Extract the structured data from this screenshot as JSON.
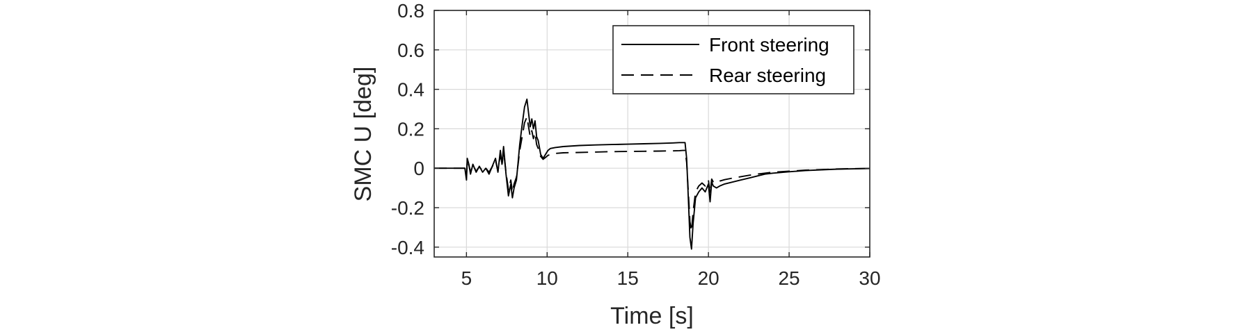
{
  "chart_data": {
    "type": "line",
    "xlabel": "Time [s]",
    "ylabel": "SMC U [deg]",
    "xlim": [
      3,
      30
    ],
    "ylim": [
      -0.45,
      0.8
    ],
    "xticks": [
      5,
      10,
      15,
      20,
      25,
      30
    ],
    "yticks": [
      -0.4,
      -0.2,
      0,
      0.2,
      0.4,
      0.6,
      0.8
    ],
    "xtick_labels": [
      "5",
      "10",
      "15",
      "20",
      "25",
      "30"
    ],
    "ytick_labels": [
      "-0.4",
      "-0.2",
      "0",
      "0.2",
      "0.4",
      "0.6",
      "0.8"
    ],
    "grid": true,
    "legend_position": "top-right",
    "series": [
      {
        "name": "Front steering",
        "style": "solid",
        "color": "#000000",
        "x": [
          3.0,
          4.9,
          5.0,
          5.05,
          5.15,
          5.25,
          5.4,
          5.6,
          5.8,
          6.0,
          6.2,
          6.4,
          6.6,
          6.8,
          6.95,
          7.1,
          7.2,
          7.3,
          7.45,
          7.6,
          7.75,
          7.85,
          7.95,
          8.1,
          8.2,
          8.3,
          8.45,
          8.6,
          8.75,
          8.85,
          8.95,
          9.05,
          9.15,
          9.25,
          9.35,
          9.45,
          9.6,
          9.75,
          9.9,
          10.05,
          10.2,
          10.5,
          11.0,
          12.0,
          13.0,
          14.0,
          15.0,
          16.0,
          17.0,
          17.8,
          18.2,
          18.4,
          18.55,
          18.65,
          18.75,
          18.85,
          18.95,
          19.05,
          19.2,
          19.4,
          19.6,
          19.8,
          20.0,
          20.1,
          20.2,
          20.3,
          20.5,
          20.7,
          21.0,
          21.5,
          22.0,
          22.5,
          23.0,
          23.5,
          24.0,
          25.0,
          26.0,
          27.0,
          28.0,
          29.0,
          30.0
        ],
        "values": [
          0.0,
          0.0,
          -0.06,
          0.05,
          0.02,
          -0.03,
          0.02,
          -0.02,
          0.01,
          -0.02,
          0.0,
          -0.03,
          0.01,
          0.05,
          -0.02,
          0.09,
          0.02,
          0.11,
          -0.03,
          -0.14,
          -0.08,
          -0.15,
          -0.1,
          -0.06,
          0.03,
          0.12,
          0.22,
          0.31,
          0.35,
          0.28,
          0.21,
          0.25,
          0.2,
          0.24,
          0.16,
          0.14,
          0.07,
          0.05,
          0.07,
          0.09,
          0.1,
          0.105,
          0.11,
          0.115,
          0.118,
          0.12,
          0.122,
          0.124,
          0.126,
          0.128,
          0.13,
          0.13,
          0.13,
          0.05,
          -0.15,
          -0.35,
          -0.41,
          -0.28,
          -0.15,
          -0.12,
          -0.1,
          -0.12,
          -0.08,
          -0.17,
          -0.07,
          -0.09,
          -0.1,
          -0.09,
          -0.08,
          -0.07,
          -0.06,
          -0.05,
          -0.04,
          -0.03,
          -0.025,
          -0.018,
          -0.012,
          -0.008,
          -0.005,
          -0.003,
          -0.001
        ]
      },
      {
        "name": "Rear steering",
        "style": "dashed",
        "color": "#000000",
        "x": [
          3.0,
          4.9,
          5.0,
          5.05,
          5.15,
          5.25,
          5.4,
          5.6,
          5.8,
          6.0,
          6.2,
          6.4,
          6.6,
          6.8,
          6.95,
          7.1,
          7.2,
          7.3,
          7.45,
          7.6,
          7.75,
          7.85,
          7.95,
          8.1,
          8.2,
          8.3,
          8.45,
          8.6,
          8.75,
          8.85,
          8.95,
          9.05,
          9.15,
          9.25,
          9.35,
          9.45,
          9.6,
          9.75,
          9.9,
          10.05,
          10.2,
          10.5,
          11.0,
          12.0,
          13.0,
          14.0,
          15.0,
          16.0,
          17.0,
          17.8,
          18.2,
          18.4,
          18.55,
          18.65,
          18.75,
          18.85,
          18.95,
          19.05,
          19.2,
          19.4,
          19.6,
          19.8,
          20.0,
          20.1,
          20.2,
          20.3,
          20.5,
          20.7,
          21.0,
          21.5,
          22.0,
          22.5,
          23.0,
          23.5,
          24.0,
          25.0,
          26.0,
          27.0,
          28.0,
          29.0,
          30.0
        ],
        "values": [
          0.0,
          0.0,
          -0.04,
          0.04,
          0.015,
          -0.02,
          0.015,
          -0.015,
          0.008,
          -0.015,
          0.0,
          -0.02,
          0.008,
          0.04,
          -0.015,
          0.07,
          0.015,
          0.085,
          -0.02,
          -0.11,
          -0.06,
          -0.12,
          -0.08,
          -0.045,
          0.02,
          0.09,
          0.16,
          0.23,
          0.26,
          0.21,
          0.16,
          0.19,
          0.15,
          0.18,
          0.12,
          0.1,
          0.06,
          0.045,
          0.055,
          0.065,
          0.07,
          0.075,
          0.078,
          0.08,
          0.082,
          0.084,
          0.085,
          0.086,
          0.087,
          0.088,
          0.089,
          0.09,
          0.09,
          0.03,
          -0.12,
          -0.27,
          -0.32,
          -0.22,
          -0.12,
          -0.09,
          -0.075,
          -0.09,
          -0.06,
          -0.13,
          -0.055,
          -0.07,
          -0.075,
          -0.065,
          -0.058,
          -0.05,
          -0.043,
          -0.036,
          -0.03,
          -0.025,
          -0.02,
          -0.015,
          -0.01,
          -0.007,
          -0.004,
          -0.002,
          -0.001
        ]
      }
    ]
  }
}
